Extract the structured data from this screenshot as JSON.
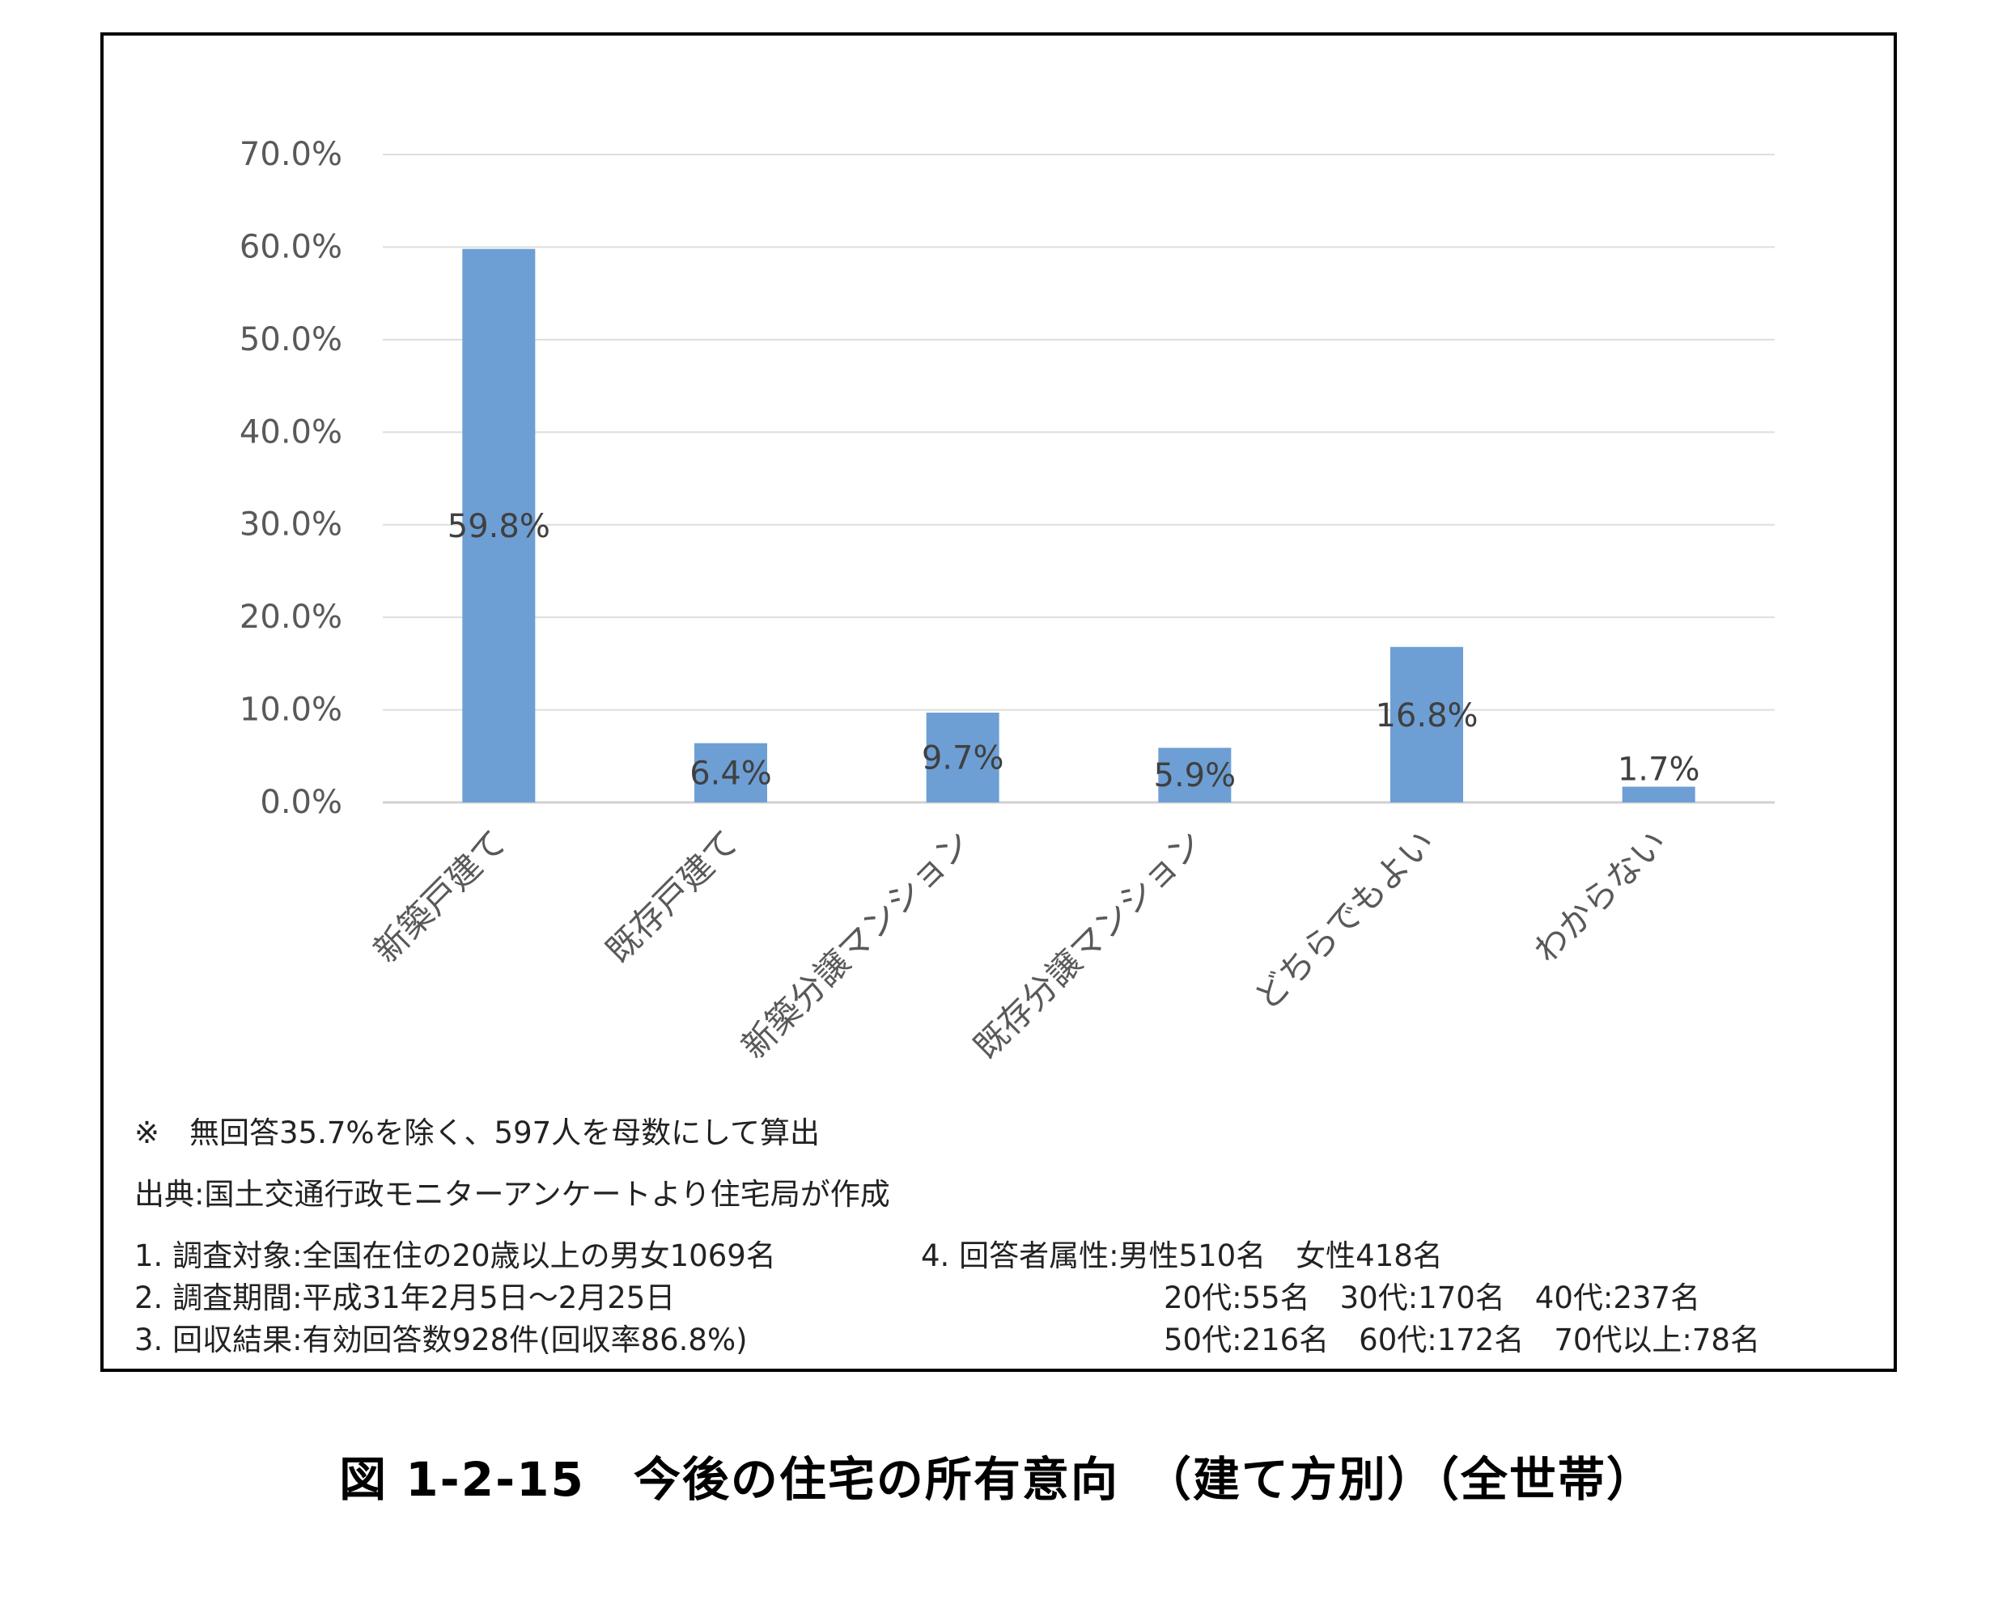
{
  "chart_data": {
    "type": "bar",
    "categories": [
      "新築戸建て",
      "既存戸建て",
      "新築分譲マンション",
      "既存分譲マンション",
      "どちらでもよい",
      "わからない"
    ],
    "values": [
      59.8,
      6.4,
      9.7,
      5.9,
      16.8,
      1.7
    ],
    "data_labels": [
      "59.8%",
      "6.4%",
      "9.7%",
      "5.9%",
      "16.8%",
      "1.7%"
    ],
    "yticks": [
      "0.0%",
      "10.0%",
      "20.0%",
      "30.0%",
      "40.0%",
      "50.0%",
      "60.0%",
      "70.0%"
    ],
    "ylim": [
      0,
      70
    ],
    "grid": true,
    "legend": "none",
    "bar_color": "#6d9fd4"
  },
  "notes": {
    "exclusion": "※　無回答35.7%を除く、597人を母数にして算出",
    "source": "出典:国土交通行政モニターアンケートより住宅局が作成",
    "item1": "1. 調査対象:全国在住の20歳以上の男女1069名",
    "item2": "2. 調査期間:平成31年2月5日〜2月25日",
    "item3": "3. 回収結果:有効回答数928件(回収率86.8%)",
    "item4": "4. 回答者属性:男性510名　女性418名",
    "item4_line2": "20代:55名　30代:170名　40代:237名",
    "item4_line3": "50代:216名　60代:172名　70代以上:78名"
  },
  "caption": "図 1-2-15　今後の住宅の所有意向　（建て方別）（全世帯）"
}
